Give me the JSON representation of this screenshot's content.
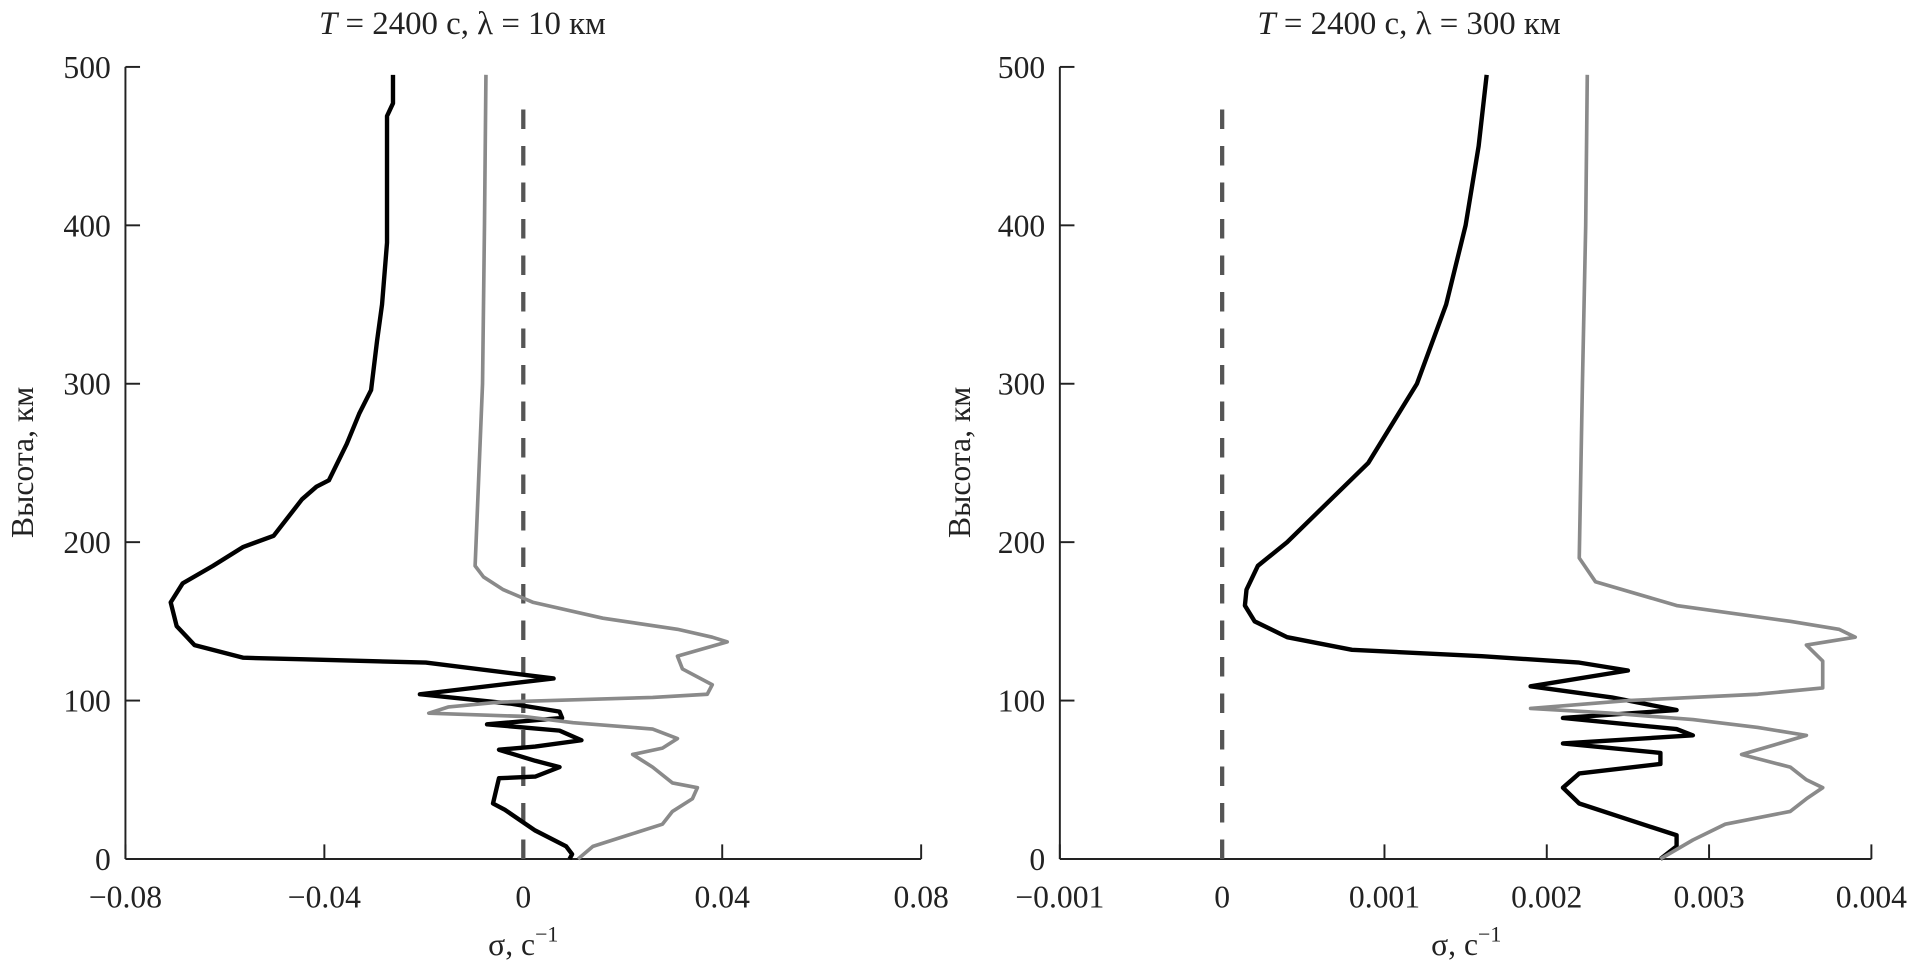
{
  "chart_data": [
    {
      "type": "line",
      "title": {
        "italic": "T",
        "rest": " = 2400 с, λ = 10 км"
      },
      "xlabel": {
        "base": "σ, с",
        "sup": "−1"
      },
      "ylabel": "Высота, км",
      "xlim": [
        -0.08,
        0.08
      ],
      "ylim": [
        0,
        500
      ],
      "xticks": [
        -0.08,
        -0.04,
        0,
        0.04,
        0.08
      ],
      "xtick_labels": [
        "−0.08",
        "−0.04",
        "0",
        "0.04",
        "0.08"
      ],
      "yticks": [
        0,
        100,
        200,
        300,
        400,
        500
      ],
      "ytick_labels": [
        "0",
        "100",
        "200",
        "300",
        "400",
        "500"
      ],
      "grid": false,
      "reference_line": {
        "x": 0,
        "style": "dashed",
        "y_range": [
          0,
          478
        ],
        "color": "#555555"
      },
      "series": [
        {
          "color": "#000000",
          "points": [
            [
              -0.0262,
              495
            ],
            [
              -0.0262,
              477
            ],
            [
              -0.0274,
              469
            ],
            [
              -0.0274,
              389
            ],
            [
              -0.0284,
              350
            ],
            [
              -0.0294,
              327
            ],
            [
              -0.0306,
              296
            ],
            [
              -0.033,
              281
            ],
            [
              -0.0355,
              262
            ],
            [
              -0.0391,
              239
            ],
            [
              -0.0416,
              235
            ],
            [
              -0.0445,
              227
            ],
            [
              -0.0502,
              204
            ],
            [
              -0.0563,
              197
            ],
            [
              -0.0624,
              185
            ],
            [
              -0.0685,
              174
            ],
            [
              -0.0709,
              162
            ],
            [
              -0.0697,
              147
            ],
            [
              -0.0661,
              135
            ],
            [
              -0.0563,
              127
            ],
            [
              -0.044,
              126
            ],
            [
              -0.0196,
              124
            ],
            [
              0.0061,
              114
            ],
            [
              -0.0208,
              104
            ],
            [
              -0.0024,
              98
            ],
            [
              0.0073,
              93
            ],
            [
              0.0078,
              89
            ],
            [
              -0.0073,
              85
            ],
            [
              0.0073,
              81
            ],
            [
              0.0117,
              75
            ],
            [
              0.0024,
              71
            ],
            [
              -0.0049,
              69
            ],
            [
              0.0024,
              62
            ],
            [
              0.0073,
              58
            ],
            [
              0.0024,
              52
            ],
            [
              -0.0049,
              51
            ],
            [
              -0.0061,
              35
            ],
            [
              -0.0037,
              31
            ],
            [
              0.0024,
              18
            ],
            [
              0.0086,
              8
            ],
            [
              0.0098,
              3
            ],
            [
              0.0093,
              0
            ]
          ]
        },
        {
          "color": "#8a8a8a",
          "points": [
            [
              -0.0075,
              495
            ],
            [
              -0.0078,
              400
            ],
            [
              -0.0082,
              300
            ],
            [
              -0.0095,
              200
            ],
            [
              -0.0097,
              185
            ],
            [
              -0.008,
              178
            ],
            [
              -0.004,
              170
            ],
            [
              0.002,
              162
            ],
            [
              0.016,
              152
            ],
            [
              0.031,
              145
            ],
            [
              0.038,
              140
            ],
            [
              0.041,
              137
            ],
            [
              0.031,
              128
            ],
            [
              0.032,
              120
            ],
            [
              0.038,
              110
            ],
            [
              0.037,
              104
            ],
            [
              0.026,
              102
            ],
            [
              -0.005,
              99
            ],
            [
              -0.015,
              96
            ],
            [
              -0.019,
              92
            ],
            [
              0.0,
              90
            ],
            [
              0.01,
              86
            ],
            [
              0.026,
              82
            ],
            [
              0.031,
              76
            ],
            [
              0.028,
              70
            ],
            [
              0.022,
              66
            ],
            [
              0.026,
              58
            ],
            [
              0.03,
              48
            ],
            [
              0.035,
              45
            ],
            [
              0.034,
              38
            ],
            [
              0.03,
              30
            ],
            [
              0.028,
              22
            ],
            [
              0.021,
              15
            ],
            [
              0.014,
              8
            ],
            [
              0.011,
              0
            ]
          ]
        }
      ]
    },
    {
      "type": "line",
      "title": {
        "italic": "T",
        "rest": " = 2400 с, λ = 300 км"
      },
      "xlabel": {
        "base": "σ, с",
        "sup": "−1"
      },
      "ylabel": "Высота, км",
      "xlim": [
        -0.001,
        0.004
      ],
      "ylim": [
        0,
        500
      ],
      "xticks": [
        -0.001,
        0,
        0.001,
        0.002,
        0.003,
        0.004
      ],
      "xtick_labels": [
        "−0.001",
        "0",
        "0.001",
        "0.002",
        "0.003",
        "0.004"
      ],
      "yticks": [
        0,
        100,
        200,
        300,
        400,
        500
      ],
      "ytick_labels": [
        "0",
        "100",
        "200",
        "300",
        "400",
        "500"
      ],
      "grid": false,
      "reference_line": {
        "x": 0,
        "style": "dashed",
        "y_range": [
          0,
          480
        ],
        "color": "#555555"
      },
      "series": [
        {
          "color": "#000000",
          "points": [
            [
              0.00163,
              495
            ],
            [
              0.00158,
              450
            ],
            [
              0.0015,
              400
            ],
            [
              0.00138,
              350
            ],
            [
              0.0012,
              300
            ],
            [
              0.0009,
              250
            ],
            [
              0.0006,
              220
            ],
            [
              0.0004,
              200
            ],
            [
              0.00022,
              185
            ],
            [
              0.00015,
              170
            ],
            [
              0.00014,
              160
            ],
            [
              0.0002,
              150
            ],
            [
              0.0004,
              140
            ],
            [
              0.0008,
              132
            ],
            [
              0.0016,
              128
            ],
            [
              0.0022,
              124
            ],
            [
              0.0025,
              119
            ],
            [
              0.0019,
              109
            ],
            [
              0.0024,
              102
            ],
            [
              0.0028,
              94
            ],
            [
              0.0021,
              89
            ],
            [
              0.0028,
              82
            ],
            [
              0.0029,
              78
            ],
            [
              0.0021,
              73
            ],
            [
              0.0027,
              67
            ],
            [
              0.0027,
              60
            ],
            [
              0.0022,
              54
            ],
            [
              0.0021,
              45
            ],
            [
              0.0022,
              35
            ],
            [
              0.0025,
              25
            ],
            [
              0.0028,
              15
            ],
            [
              0.0028,
              8
            ],
            [
              0.0027,
              0
            ]
          ]
        },
        {
          "color": "#8a8a8a",
          "points": [
            [
              0.00225,
              495
            ],
            [
              0.00224,
              400
            ],
            [
              0.00222,
              300
            ],
            [
              0.0022,
              190
            ],
            [
              0.0023,
              175
            ],
            [
              0.0028,
              160
            ],
            [
              0.0035,
              150
            ],
            [
              0.0038,
              145
            ],
            [
              0.0039,
              140
            ],
            [
              0.0036,
              135
            ],
            [
              0.0037,
              125
            ],
            [
              0.0037,
              117
            ],
            [
              0.0037,
              108
            ],
            [
              0.0033,
              104
            ],
            [
              0.0025,
              100
            ],
            [
              0.0019,
              95
            ],
            [
              0.0024,
              92
            ],
            [
              0.0029,
              88
            ],
            [
              0.0033,
              83
            ],
            [
              0.0036,
              78
            ],
            [
              0.0034,
              72
            ],
            [
              0.0032,
              66
            ],
            [
              0.0035,
              58
            ],
            [
              0.0036,
              50
            ],
            [
              0.0037,
              45
            ],
            [
              0.0036,
              38
            ],
            [
              0.0035,
              30
            ],
            [
              0.0031,
              22
            ],
            [
              0.0029,
              12
            ],
            [
              0.0027,
              0
            ]
          ]
        }
      ]
    }
  ]
}
